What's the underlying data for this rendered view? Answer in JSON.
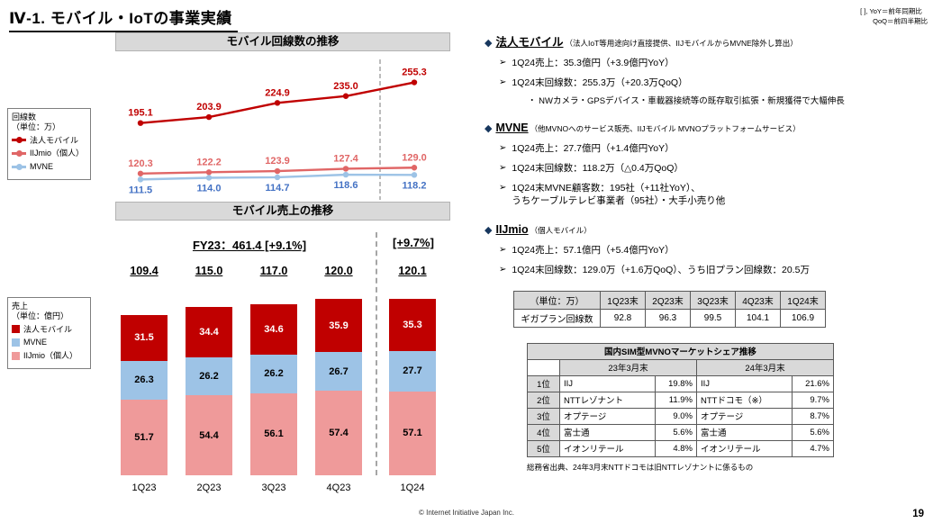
{
  "meta": {
    "title": "Ⅳ-1. モバイル・IoTの事業実績",
    "note_line1": "[ ], YoY＝前年同期比",
    "note_line2": "QoQ＝前四半期比",
    "footer": "© Internet Initiative Japan Inc.",
    "page_number": "19"
  },
  "chart_data": [
    {
      "type": "line",
      "title": "モバイル回線数の推移",
      "unit_lines": [
        "回線数",
        "（単位：万）"
      ],
      "categories": [
        "1Q23",
        "2Q23",
        "3Q23",
        "4Q23",
        "1Q24"
      ],
      "series": [
        {
          "name": "法人モバイル",
          "color": "#C00000",
          "label_color": "#C00000",
          "values": [
            195.1,
            203.9,
            224.9,
            235.0,
            255.3
          ]
        },
        {
          "name": "IIJmio（個人）",
          "color": "#E06666",
          "label_color": "#E06666",
          "values": [
            120.3,
            122.2,
            123.9,
            127.4,
            129.0
          ]
        },
        {
          "name": "MVNE",
          "color": "#9DC3E6",
          "label_color": "#4472C4",
          "values": [
            111.5,
            114.0,
            114.7,
            118.6,
            118.2
          ]
        }
      ],
      "ylim": [
        100,
        280
      ],
      "grid": false,
      "legend_position": "left",
      "separator_after_index": 3
    },
    {
      "type": "bar",
      "title": "モバイル売上の推移",
      "unit_lines": [
        "売上",
        "（単位：億円）"
      ],
      "fy_label": "FY23：461.4 [+9.1%]",
      "yoy_label": "[+9.7%]",
      "categories": [
        "1Q23",
        "2Q23",
        "3Q23",
        "4Q23",
        "1Q24"
      ],
      "totals": [
        "109.4",
        "115.0",
        "117.0",
        "120.0",
        "120.1"
      ],
      "series": [
        {
          "name": "法人モバイル",
          "color": "#C00000",
          "values": [
            31.5,
            34.4,
            34.6,
            35.9,
            35.3
          ]
        },
        {
          "name": "MVNE",
          "color": "#9DC3E6",
          "values": [
            26.3,
            26.2,
            26.2,
            26.7,
            27.7
          ]
        },
        {
          "name": "IIJmio（個人）",
          "color": "#EF9A9A",
          "values": [
            51.7,
            54.4,
            56.1,
            57.4,
            57.1
          ]
        }
      ],
      "stacked": true,
      "legend_position": "left",
      "separator_after_index": 3
    }
  ],
  "sections": [
    {
      "heading": "法人モバイル",
      "heading_note": "（法人IoT等用途向け直接提供、IIJモバイルからMVNE除外し算出）",
      "bullets": [
        {
          "text": "1Q24売上：35.3億円（+3.9億円YoY）"
        },
        {
          "text": "1Q24末回線数：255.3万（+20.3万QoQ）",
          "sub": "・ NWカメラ・GPSデバイス・車載器接続等の既存取引拡張・新規獲得で大幅伸長"
        }
      ]
    },
    {
      "heading": "MVNE",
      "heading_note": "（他MVNOへのサービス販売、IIJモバイル MVNOプラットフォームサービス）",
      "bullets": [
        {
          "text": "1Q24売上：27.7億円（+1.4億円YoY）"
        },
        {
          "text": "1Q24末回線数：118.2万（△0.4万QoQ）"
        },
        {
          "text": "1Q24末MVNE顧客数：195社（+11社YoY）、\nうちケーブルテレビ事業者（95社）・大手小売り他"
        }
      ]
    },
    {
      "heading": "IIJmio",
      "heading_note": "（個人モバイル）",
      "bullets": [
        {
          "text": "1Q24売上：57.1億円（+5.4億円YoY）"
        },
        {
          "text": "1Q24末回線数：129.0万（+1.6万QoQ）、うち旧プラン回線数：20.5万"
        }
      ]
    }
  ],
  "giga_table": {
    "headers": [
      "（単位：万）",
      "1Q23末",
      "2Q23末",
      "3Q23末",
      "4Q23末",
      "1Q24末"
    ],
    "row_label": "ギガプラン回線数",
    "values": [
      "92.8",
      "96.3",
      "99.5",
      "104.1",
      "106.9"
    ]
  },
  "share_table": {
    "title": "国内SIM型MVNOマーケットシェア推移",
    "col_headers": [
      "23年3月末",
      "24年3月末"
    ],
    "highlight_color": "#C00000",
    "rows": [
      {
        "rank": "1位",
        "name23": "IIJ",
        "share23": "19.8%",
        "name24": "IIJ",
        "share24": "21.6%",
        "highlight": true
      },
      {
        "rank": "2位",
        "name23": "NTTレゾナント",
        "share23": "11.9%",
        "name24": "NTTドコモ（※）",
        "share24": "9.7%",
        "highlight": false
      },
      {
        "rank": "3位",
        "name23": "オプテージ",
        "share23": "9.0%",
        "name24": "オプテージ",
        "share24": "8.7%",
        "highlight": false
      },
      {
        "rank": "4位",
        "name23": "富士通",
        "share23": "5.6%",
        "name24": "富士通",
        "share24": "5.6%",
        "highlight": false
      },
      {
        "rank": "5位",
        "name23": "イオンリテール",
        "share23": "4.8%",
        "name24": "イオンリテール",
        "share24": "4.7%",
        "highlight": false
      }
    ],
    "note": "総務省出典、24年3月末NTTドコモは旧NTTレゾナントに係るもの"
  }
}
